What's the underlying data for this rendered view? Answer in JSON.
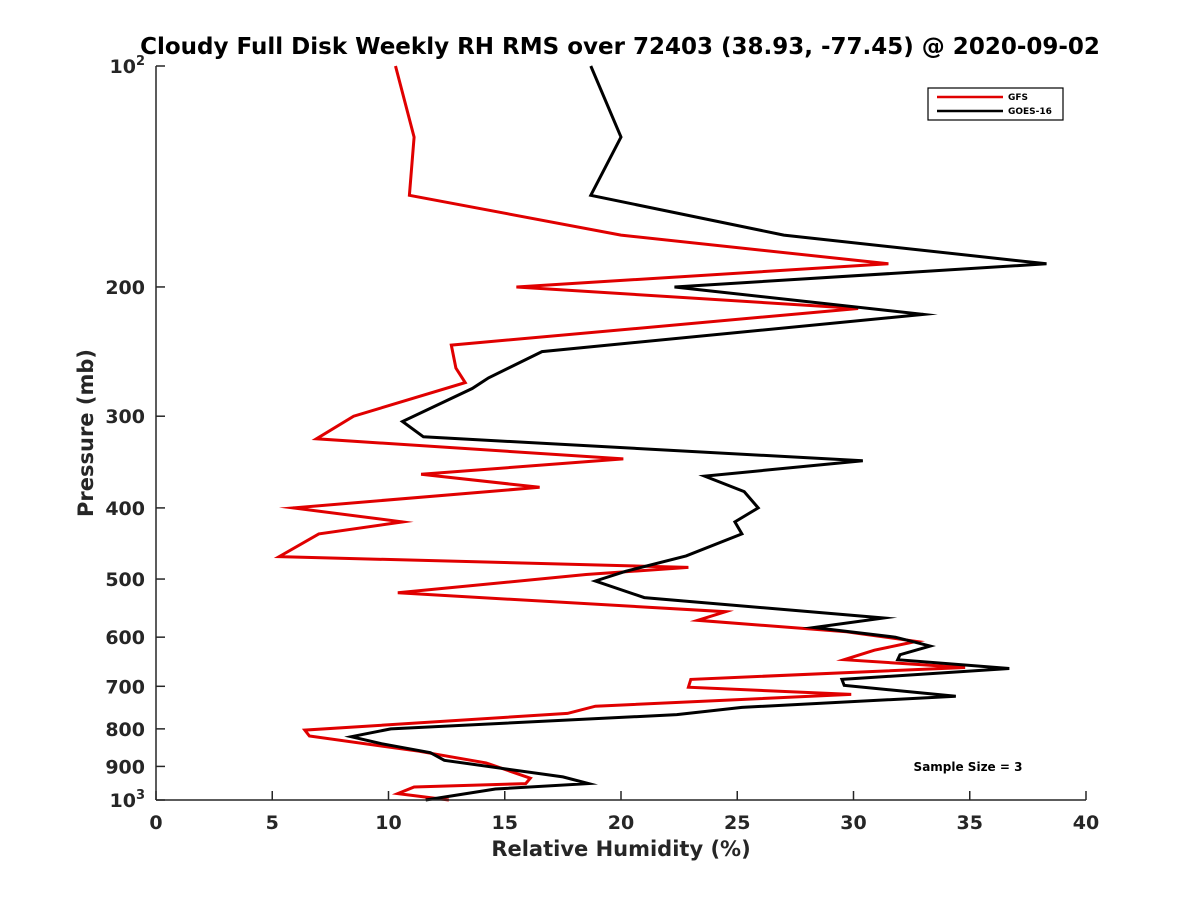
{
  "chart_data": {
    "type": "line",
    "title": "Cloudy Full Disk Weekly RH RMS over 72403 (38.93, -77.45) @ 2020-09-02",
    "xlabel": "Relative Humidity (%)",
    "ylabel": "Pressure (mb)",
    "xlim": [
      0,
      40
    ],
    "ylim": [
      100,
      1000
    ],
    "yscale": "log",
    "y_reversed": true,
    "xticks": [
      0,
      5,
      10,
      15,
      20,
      25,
      30,
      35,
      40
    ],
    "xtick_labels": [
      "0",
      "5",
      "10",
      "15",
      "20",
      "25",
      "30",
      "35",
      "40"
    ],
    "yticks": [
      100,
      200,
      300,
      400,
      500,
      600,
      700,
      800,
      900,
      1000
    ],
    "ytick_labels": [
      {
        "base": "10",
        "exp": "2"
      },
      {
        "base": "200",
        "exp": ""
      },
      {
        "base": "300",
        "exp": ""
      },
      {
        "base": "400",
        "exp": ""
      },
      {
        "base": "500",
        "exp": ""
      },
      {
        "base": "600",
        "exp": ""
      },
      {
        "base": "700",
        "exp": ""
      },
      {
        "base": "800",
        "exp": ""
      },
      {
        "base": "900",
        "exp": ""
      },
      {
        "base": "10",
        "exp": "3"
      }
    ],
    "grid": false,
    "legend_position": "top-right",
    "annotation": "Sample Size = 3",
    "series": [
      {
        "name": "GFS",
        "color": "#e00000",
        "points": [
          [
            10.3,
            100
          ],
          [
            11.1,
            125
          ],
          [
            10.9,
            150
          ],
          [
            20.0,
            170
          ],
          [
            31.5,
            186
          ],
          [
            15.5,
            200
          ],
          [
            30.2,
            214
          ],
          [
            12.7,
            240
          ],
          [
            12.9,
            258
          ],
          [
            13.3,
            270
          ],
          [
            8.5,
            300
          ],
          [
            6.9,
            322
          ],
          [
            20.1,
            343
          ],
          [
            11.4,
            360
          ],
          [
            16.5,
            375
          ],
          [
            5.9,
            400
          ],
          [
            10.6,
            418
          ],
          [
            7.0,
            434
          ],
          [
            5.3,
            466
          ],
          [
            22.9,
            482
          ],
          [
            18.5,
            493
          ],
          [
            10.4,
            522
          ],
          [
            24.5,
            554
          ],
          [
            23.3,
            569
          ],
          [
            29.7,
            590
          ],
          [
            32.7,
            608
          ],
          [
            30.9,
            625
          ],
          [
            29.6,
            644
          ],
          [
            34.8,
            660
          ],
          [
            23.0,
            685
          ],
          [
            22.9,
            702
          ],
          [
            29.9,
            718
          ],
          [
            18.9,
            745
          ],
          [
            17.7,
            762
          ],
          [
            6.4,
            803
          ],
          [
            6.6,
            818
          ],
          [
            11.3,
            858
          ],
          [
            14.2,
            890
          ],
          [
            16.1,
            934
          ],
          [
            15.9,
            950
          ],
          [
            11.1,
            960
          ],
          [
            10.4,
            980
          ],
          [
            12.6,
            1000
          ]
        ]
      },
      {
        "name": "GOES-16",
        "color": "#000000",
        "points": [
          [
            18.7,
            100
          ],
          [
            20.0,
            125
          ],
          [
            18.7,
            150
          ],
          [
            27.0,
            170
          ],
          [
            38.3,
            186
          ],
          [
            22.3,
            200
          ],
          [
            33.0,
            218
          ],
          [
            16.6,
            245
          ],
          [
            14.3,
            266
          ],
          [
            13.6,
            275
          ],
          [
            10.6,
            305
          ],
          [
            11.5,
            320
          ],
          [
            30.4,
            345
          ],
          [
            23.6,
            362
          ],
          [
            25.3,
            380
          ],
          [
            25.9,
            400
          ],
          [
            24.9,
            418
          ],
          [
            25.2,
            434
          ],
          [
            22.8,
            465
          ],
          [
            20.2,
            488
          ],
          [
            18.9,
            503
          ],
          [
            21.0,
            530
          ],
          [
            31.3,
            565
          ],
          [
            28.3,
            582
          ],
          [
            31.8,
            600
          ],
          [
            33.3,
            617
          ],
          [
            32.0,
            634
          ],
          [
            31.9,
            644
          ],
          [
            36.7,
            662
          ],
          [
            29.5,
            685
          ],
          [
            29.6,
            698
          ],
          [
            34.4,
            722
          ],
          [
            25.2,
            748
          ],
          [
            22.4,
            765
          ],
          [
            10.1,
            800
          ],
          [
            8.4,
            820
          ],
          [
            9.7,
            838
          ],
          [
            11.8,
            862
          ],
          [
            12.4,
            883
          ],
          [
            17.5,
            930
          ],
          [
            18.6,
            950
          ],
          [
            14.6,
            966
          ],
          [
            11.6,
            1000
          ]
        ]
      }
    ]
  }
}
